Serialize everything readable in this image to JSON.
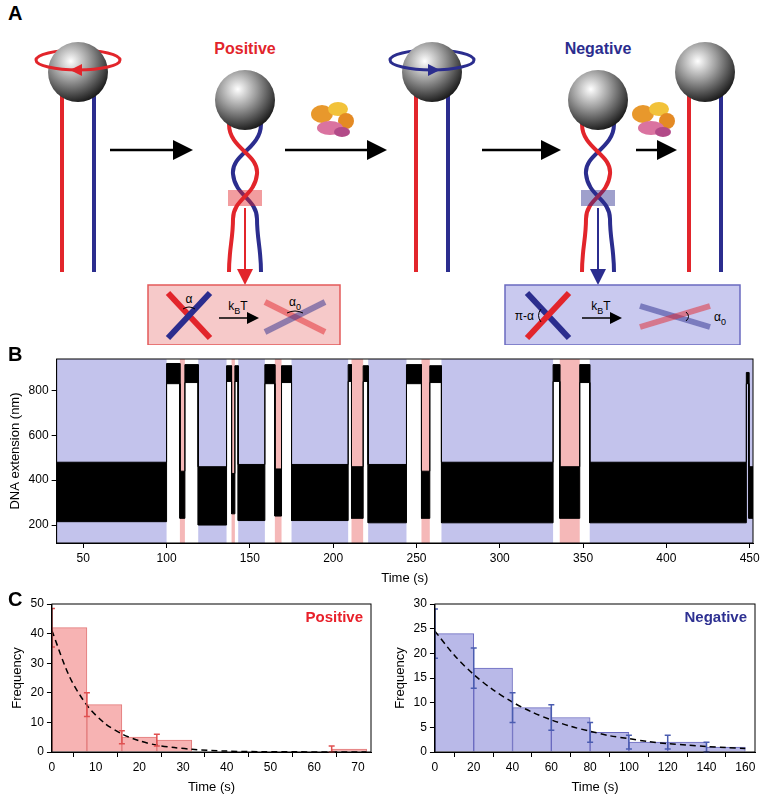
{
  "panel_labels": [
    "A",
    "B",
    "C"
  ],
  "diagram": {
    "positive_label": "Positive",
    "negative_label": "Negative",
    "positive_inset": {
      "start_angle": {
        "text": "α"
      },
      "arrow": {
        "text": "k",
        "sub": "B",
        "after": "T"
      },
      "end_angle": {
        "text": "α",
        "sub": "0"
      }
    },
    "negative_inset": {
      "start_angle": {
        "text": "π-α"
      },
      "arrow": {
        "text": "k",
        "sub": "B",
        "after": "T"
      },
      "end_angle": {
        "text": "α",
        "sub": "0"
      }
    }
  },
  "chart_data": [
    {
      "type": "line",
      "xlabel": "Time (s)",
      "ylabel": "DNA extension (nm)",
      "color": "#000000",
      "xlim": [
        34,
        452
      ],
      "xticks": [
        50,
        100,
        150,
        200,
        250,
        300,
        350,
        400,
        450
      ],
      "ylim": [
        120,
        940
      ],
      "yticks": [
        200,
        400,
        600,
        800
      ],
      "segments": [
        {
          "start": 34,
          "end": 100,
          "lower": 215,
          "upper": 480
        },
        {
          "start": 100,
          "end": 108,
          "lower": 830,
          "upper": 920
        },
        {
          "start": 108,
          "end": 111,
          "lower": 230,
          "upper": 440
        },
        {
          "start": 111,
          "end": 119,
          "lower": 835,
          "upper": 915
        },
        {
          "start": 119,
          "end": 136,
          "lower": 200,
          "upper": 460
        },
        {
          "start": 136,
          "end": 139,
          "lower": 840,
          "upper": 910
        },
        {
          "start": 139,
          "end": 141,
          "lower": 250,
          "upper": 430
        },
        {
          "start": 141,
          "end": 143,
          "lower": 840,
          "upper": 910
        },
        {
          "start": 143,
          "end": 159,
          "lower": 220,
          "upper": 470
        },
        {
          "start": 159,
          "end": 165,
          "lower": 830,
          "upper": 915
        },
        {
          "start": 165,
          "end": 169,
          "lower": 240,
          "upper": 450
        },
        {
          "start": 169,
          "end": 175,
          "lower": 835,
          "upper": 910
        },
        {
          "start": 175,
          "end": 209,
          "lower": 220,
          "upper": 470
        },
        {
          "start": 209,
          "end": 211,
          "lower": 840,
          "upper": 915
        },
        {
          "start": 211,
          "end": 218,
          "lower": 230,
          "upper": 460
        },
        {
          "start": 218,
          "end": 221,
          "lower": 840,
          "upper": 910
        },
        {
          "start": 221,
          "end": 244,
          "lower": 210,
          "upper": 470
        },
        {
          "start": 244,
          "end": 253,
          "lower": 830,
          "upper": 915
        },
        {
          "start": 253,
          "end": 258,
          "lower": 230,
          "upper": 440
        },
        {
          "start": 258,
          "end": 265,
          "lower": 835,
          "upper": 910
        },
        {
          "start": 265,
          "end": 332,
          "lower": 210,
          "upper": 480
        },
        {
          "start": 332,
          "end": 336,
          "lower": 840,
          "upper": 915
        },
        {
          "start": 336,
          "end": 348,
          "lower": 230,
          "upper": 460
        },
        {
          "start": 348,
          "end": 354,
          "lower": 835,
          "upper": 915
        },
        {
          "start": 354,
          "end": 448,
          "lower": 210,
          "upper": 480
        },
        {
          "start": 448,
          "end": 449.5,
          "lower": 830,
          "upper": 880
        },
        {
          "start": 449.5,
          "end": 452,
          "lower": 230,
          "upper": 460
        }
      ],
      "shading": [
        {
          "start": 34,
          "end": 100,
          "color": "#c3c3ec"
        },
        {
          "start": 108,
          "end": 111,
          "color": "#f5b8b8"
        },
        {
          "start": 119,
          "end": 136,
          "color": "#c3c3ec"
        },
        {
          "start": 139,
          "end": 141,
          "color": "#f5b8b8"
        },
        {
          "start": 143,
          "end": 159,
          "color": "#c3c3ec"
        },
        {
          "start": 165,
          "end": 169,
          "color": "#f5b8b8"
        },
        {
          "start": 175,
          "end": 209,
          "color": "#c3c3ec"
        },
        {
          "start": 211,
          "end": 218,
          "color": "#f5b8b8"
        },
        {
          "start": 221,
          "end": 244,
          "color": "#c3c3ec"
        },
        {
          "start": 253,
          "end": 258,
          "color": "#f5b8b8"
        },
        {
          "start": 265,
          "end": 332,
          "color": "#c3c3ec"
        },
        {
          "start": 336,
          "end": 348,
          "color": "#f5b8b8"
        },
        {
          "start": 354,
          "end": 452,
          "color": "#c3c3ec"
        }
      ]
    },
    {
      "type": "bar",
      "title": "Positive",
      "xlabel": "Time (s)",
      "ylabel": "Frequency",
      "color": "#f7b3b3",
      "xlim": [
        0,
        73
      ],
      "xticks": [
        0,
        10,
        20,
        30,
        40,
        50,
        60,
        70
      ],
      "ylim": [
        0,
        50
      ],
      "yticks": [
        0,
        10,
        20,
        30,
        40,
        50
      ],
      "bins": [
        0,
        8,
        16,
        24,
        32,
        40,
        48,
        56,
        64,
        72
      ],
      "values": [
        42,
        16,
        5,
        4,
        0,
        0,
        0,
        0,
        1
      ],
      "errors": [
        6.5,
        4,
        2.2,
        2,
        0,
        0,
        0,
        0,
        1
      ],
      "fit": {
        "x": [
          0,
          4,
          8,
          12,
          16,
          20,
          24,
          28,
          32,
          40,
          48,
          56,
          64,
          72
        ],
        "y": [
          41,
          25.5,
          15.8,
          9.8,
          6.1,
          3.8,
          2.3,
          1.5,
          0.9,
          0.3,
          0.1,
          0.05,
          0.02,
          0.01
        ]
      }
    },
    {
      "type": "bar",
      "title": "Negative",
      "xlabel": "Time (s)",
      "ylabel": "Frequency",
      "color": "#b9b9e8",
      "xlim": [
        0,
        165
      ],
      "xticks": [
        0,
        20,
        40,
        60,
        80,
        100,
        120,
        140,
        160
      ],
      "ylim": [
        0,
        30
      ],
      "yticks": [
        0,
        5,
        10,
        15,
        20,
        25,
        30
      ],
      "bins": [
        0,
        20,
        40,
        60,
        80,
        100,
        120,
        140,
        160
      ],
      "values": [
        24,
        17,
        9,
        7,
        4,
        2,
        2,
        1
      ],
      "errors": [
        5,
        4.1,
        3,
        2.6,
        2,
        1.4,
        1.4,
        1
      ],
      "fit": {
        "x": [
          0,
          10,
          20,
          30,
          40,
          50,
          60,
          70,
          80,
          90,
          100,
          110,
          120,
          130,
          140,
          150,
          160
        ],
        "y": [
          24.5,
          19.6,
          15.7,
          12.6,
          10.1,
          8.1,
          6.5,
          5.2,
          4.2,
          3.3,
          2.7,
          2.1,
          1.7,
          1.4,
          1.1,
          0.9,
          0.7
        ]
      }
    }
  ]
}
